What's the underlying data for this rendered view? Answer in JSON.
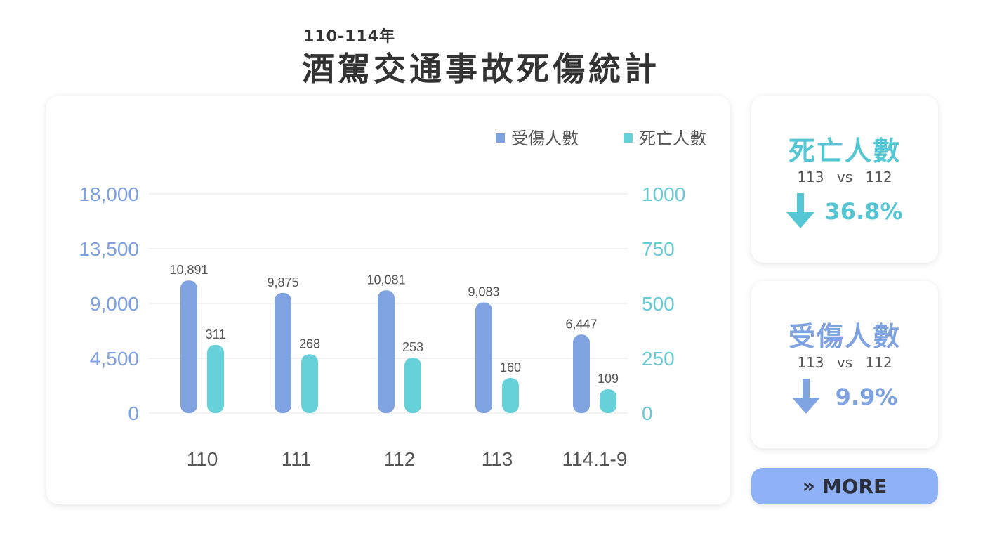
{
  "header": {
    "subtitle": "110-114年",
    "title": "酒駕交通事故死傷統計"
  },
  "colors": {
    "injured": "#7fa2e0",
    "deaths": "#66d1d8",
    "left_axis_text": "#7ea0e0",
    "right_axis_text": "#66cbd6",
    "category_text": "#555555",
    "more_button_bg": "#8fb1f8"
  },
  "chart_data": {
    "type": "bar",
    "title": "",
    "xlabel": "",
    "ylabel": "",
    "categories": [
      "110",
      "111",
      "112",
      "113",
      "114.1-9"
    ],
    "series": [
      {
        "name": "受傷人數",
        "axis": "left",
        "values": [
          10891,
          9875,
          10081,
          9083,
          6447
        ],
        "labels": [
          "10,891",
          "9,875",
          "10,081",
          "9,083",
          "6,447"
        ]
      },
      {
        "name": "死亡人數",
        "axis": "right",
        "values": [
          311,
          268,
          253,
          160,
          109
        ],
        "labels": [
          "311",
          "268",
          "253",
          "160",
          "109"
        ]
      }
    ],
    "y_left": {
      "range": [
        0,
        18000
      ],
      "ticks": [
        0,
        4500,
        9000,
        13500,
        18000
      ],
      "tick_labels": [
        "0",
        "4,500",
        "9,000",
        "13,500",
        "18,000"
      ]
    },
    "y_right": {
      "range": [
        0,
        1000
      ],
      "ticks": [
        0,
        250,
        500,
        750,
        1000
      ],
      "tick_labels": [
        "0",
        "250",
        "500",
        "750",
        "1000"
      ]
    },
    "grid": true,
    "legend_position": "top-right"
  },
  "stats": {
    "deaths": {
      "label": "死亡人數",
      "compare": "113 vs 112",
      "direction": "down",
      "value": "36.8%"
    },
    "injuries": {
      "label": "受傷人數",
      "compare": "113 vs 112",
      "direction": "down",
      "value": "9.9%"
    }
  },
  "more_button": {
    "icon": "double-chevron-right-icon",
    "label": "MORE"
  }
}
